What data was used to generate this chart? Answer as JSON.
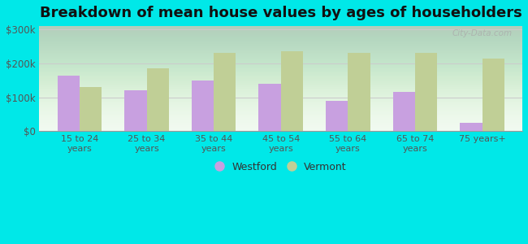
{
  "title": "Breakdown of mean house values by ages of householders",
  "categories": [
    "15 to 24\nyears",
    "25 to 34\nyears",
    "35 to 44\nyears",
    "45 to 54\nyears",
    "55 to 64\nyears",
    "65 to 74\nyears",
    "75 years+"
  ],
  "westford": [
    165000,
    120000,
    150000,
    140000,
    90000,
    115000,
    25000
  ],
  "vermont": [
    130000,
    185000,
    230000,
    235000,
    232000,
    230000,
    215000
  ],
  "westford_color": "#c8a0e0",
  "vermont_color": "#c0cf96",
  "outer_bg": "#00e8e8",
  "yticks": [
    0,
    100000,
    200000,
    300000
  ],
  "ylim": [
    0,
    310000
  ],
  "ylabel_labels": [
    "$0",
    "$100k",
    "$200k",
    "$300k"
  ],
  "title_fontsize": 13,
  "legend_labels": [
    "Westford",
    "Vermont"
  ],
  "bar_width": 0.33,
  "grid_color": "#cccccc",
  "watermark": "City-Data.com"
}
